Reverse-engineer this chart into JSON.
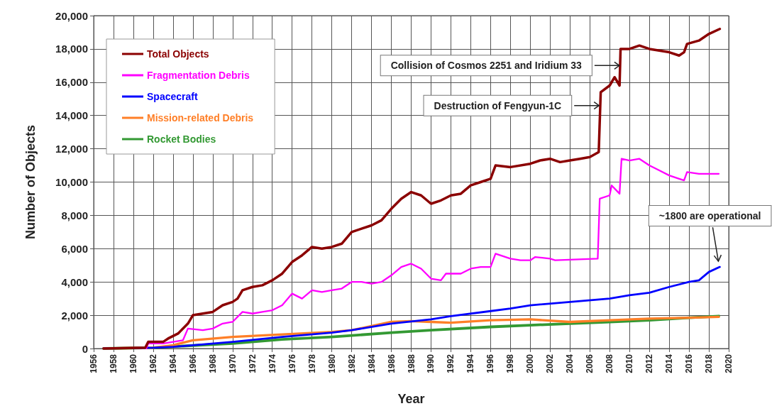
{
  "chart_data": {
    "type": "line",
    "xlabel": "Year",
    "ylabel": "Number of Objects",
    "xlim": [
      1956,
      2020
    ],
    "xticks": [
      1956,
      1958,
      1960,
      1962,
      1964,
      1966,
      1968,
      1970,
      1972,
      1974,
      1976,
      1978,
      1980,
      1982,
      1984,
      1986,
      1988,
      1990,
      1992,
      1994,
      1996,
      1998,
      2000,
      2002,
      2004,
      2006,
      2008,
      2010,
      2012,
      2014,
      2016,
      2018,
      2020
    ],
    "ylim": [
      0,
      20000
    ],
    "yticks": [
      {
        "value": 0,
        "label": "0"
      },
      {
        "value": 2000,
        "label": "2,000"
      },
      {
        "value": 4000,
        "label": "4,000"
      },
      {
        "value": 6000,
        "label": "6,000"
      },
      {
        "value": 8000,
        "label": "8,000"
      },
      {
        "value": 10000,
        "label": "10,000"
      },
      {
        "value": 12000,
        "label": "12,000"
      },
      {
        "value": 14000,
        "label": "14,000"
      },
      {
        "value": 16000,
        "label": "16,000"
      },
      {
        "value": 18000,
        "label": "18,000"
      },
      {
        "value": 20000,
        "label": "20,000"
      }
    ],
    "grid": true,
    "legend": "top left",
    "marker": "none",
    "line_style": "solid",
    "series": [
      {
        "name": "Total Objects",
        "color": "#8b0000",
        "x": [
          1957,
          1961.2,
          1961.5,
          1963,
          1963.5,
          1964.5,
          1965.5,
          1966,
          1967,
          1968,
          1969,
          1970,
          1970.5,
          1971,
          1972,
          1973,
          1974,
          1975,
          1976,
          1977,
          1978,
          1979,
          1980,
          1981,
          1982,
          1983,
          1984,
          1985,
          1986,
          1987,
          1988,
          1989,
          1990,
          1991,
          1992,
          1993,
          1994,
          1995,
          1996,
          1996.5,
          1998,
          2000,
          2001,
          2002,
          2003,
          2004,
          2005,
          2006,
          2006.9,
          2007.1,
          2008,
          2008.5,
          2009,
          2009.1,
          2010,
          2011,
          2012,
          2013,
          2014,
          2015,
          2015.5,
          2015.8,
          2017,
          2018,
          2019.1
        ],
        "values": [
          0,
          50,
          400,
          400,
          600,
          900,
          1500,
          2000,
          2100,
          2200,
          2600,
          2800,
          3000,
          3500,
          3700,
          3800,
          4100,
          4500,
          5200,
          5600,
          6100,
          6000,
          6100,
          6300,
          7000,
          7200,
          7400,
          7700,
          8400,
          9000,
          9400,
          9200,
          8700,
          8900,
          9200,
          9300,
          9800,
          10000,
          10200,
          11000,
          10900,
          11100,
          11300,
          11400,
          11200,
          11300,
          11400,
          11500,
          11800,
          15400,
          15800,
          16300,
          15800,
          18000,
          18000,
          18200,
          18000,
          17900,
          17800,
          17600,
          17800,
          18300,
          18500,
          18900,
          19200
        ]
      },
      {
        "name": "Fragmentation Debris",
        "color": "#ff00ff",
        "x": [
          1961.3,
          1961.5,
          1963,
          1964,
          1965,
          1965.5,
          1967,
          1968,
          1969,
          1970,
          1971,
          1972,
          1973,
          1974,
          1975,
          1976,
          1977,
          1978,
          1979,
          1980,
          1981,
          1982,
          1983,
          1984,
          1985,
          1986,
          1987,
          1988,
          1989,
          1990,
          1991,
          1991.5,
          1993,
          1994,
          1995,
          1996,
          1996.5,
          1998,
          1999,
          2000,
          2000.5,
          2002,
          2002.5,
          2006.8,
          2007,
          2008,
          2008.2,
          2009,
          2009.2,
          2010,
          2011,
          2012,
          2013,
          2014,
          2015,
          2015.5,
          2015.8,
          2017,
          2019
        ],
        "values": [
          0,
          300,
          300,
          400,
          500,
          1200,
          1100,
          1200,
          1500,
          1600,
          2200,
          2100,
          2200,
          2300,
          2600,
          3300,
          3000,
          3500,
          3400,
          3500,
          3600,
          4000,
          4000,
          3900,
          4000,
          4400,
          4900,
          5100,
          4800,
          4200,
          4100,
          4500,
          4500,
          4800,
          4900,
          4900,
          5700,
          5400,
          5300,
          5300,
          5500,
          5400,
          5300,
          5400,
          9000,
          9200,
          9800,
          9300,
          11400,
          11300,
          11400,
          11000,
          10700,
          10400,
          10200,
          10100,
          10600,
          10500,
          10500
        ]
      },
      {
        "name": "Spacecraft",
        "color": "#0000ff",
        "x": [
          1957,
          1962,
          1964,
          1966,
          1970,
          1975,
          1980,
          1982,
          1986,
          1990,
          1992,
          1996,
          1998,
          2000,
          2004,
          2008,
          2010,
          2012,
          2014,
          2016,
          2017,
          2018,
          2019.1
        ],
        "values": [
          0,
          50,
          100,
          200,
          400,
          700,
          950,
          1100,
          1500,
          1750,
          1950,
          2250,
          2400,
          2600,
          2800,
          3000,
          3200,
          3350,
          3700,
          4000,
          4100,
          4600,
          4900
        ]
      },
      {
        "name": "Mission-related Debris",
        "color": "#ff7f27",
        "x": [
          1957,
          1962,
          1964,
          1966,
          1970,
          1975,
          1980,
          1982,
          1986,
          1988,
          1990,
          1992,
          1996,
          2000,
          2004,
          2008,
          2012,
          2016,
          2019
        ],
        "values": [
          0,
          50,
          200,
          500,
          700,
          850,
          1000,
          1100,
          1600,
          1650,
          1600,
          1550,
          1700,
          1750,
          1600,
          1700,
          1800,
          1850,
          1900
        ]
      },
      {
        "name": "Rocket Bodies",
        "color": "#339933",
        "x": [
          1957,
          1962,
          1965,
          1970,
          1975,
          1980,
          1986,
          1990,
          1996,
          2000,
          2004,
          2008,
          2012,
          2016,
          2019
        ],
        "values": [
          0,
          50,
          150,
          300,
          550,
          700,
          950,
          1100,
          1300,
          1400,
          1500,
          1600,
          1700,
          1850,
          1950
        ]
      }
    ],
    "annotations": [
      {
        "text": "Collision of Cosmos 2251 and Iridium 33",
        "x": 2009.05,
        "y": 17000
      },
      {
        "text": "Destruction of Fengyun-1C",
        "x": 2007,
        "y": 14600
      },
      {
        "text": "~1800 are operational",
        "x": 2019.1,
        "y": 4900
      }
    ]
  }
}
